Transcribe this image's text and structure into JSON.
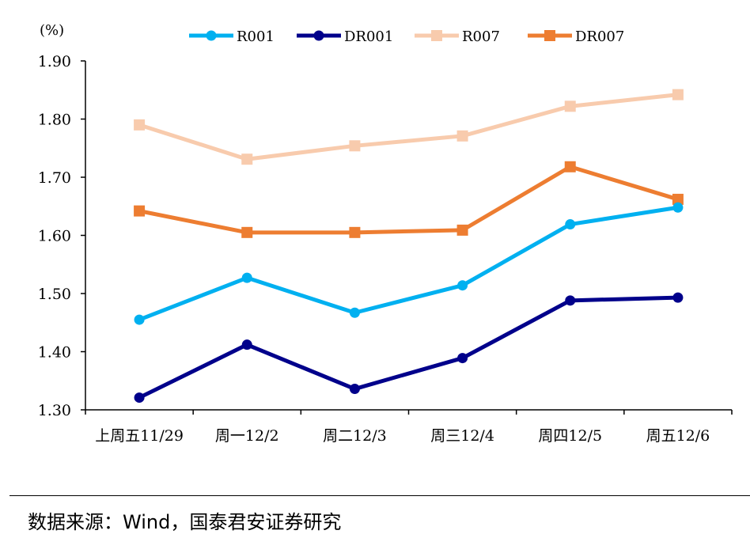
{
  "unit_label": "(%)",
  "source": "数据来源：Wind，国泰君安证券研究",
  "chart_data": {
    "type": "line",
    "categories": [
      "上周五11/29",
      "周一12/2",
      "周二12/3",
      "周三12/4",
      "周四12/5",
      "周五12/6"
    ],
    "ylim": [
      1.3,
      1.9
    ],
    "yticks": [
      "1.30",
      "1.40",
      "1.50",
      "1.60",
      "1.70",
      "1.80",
      "1.90"
    ],
    "ytick_values": [
      1.3,
      1.4,
      1.5,
      1.6,
      1.7,
      1.8,
      1.9
    ],
    "grid": false,
    "legend": "top",
    "series": [
      {
        "name": "R001",
        "color": "#00B0F0",
        "marker": "circle",
        "values": [
          1.455,
          1.527,
          1.467,
          1.514,
          1.619,
          1.648
        ]
      },
      {
        "name": "DR001",
        "color": "#00008B",
        "marker": "circle",
        "values": [
          1.321,
          1.412,
          1.336,
          1.389,
          1.488,
          1.493
        ]
      },
      {
        "name": "R007",
        "color": "#F8CBAD",
        "marker": "square",
        "values": [
          1.79,
          1.731,
          1.754,
          1.771,
          1.822,
          1.842
        ]
      },
      {
        "name": "DR007",
        "color": "#ED7D31",
        "marker": "square",
        "values": [
          1.642,
          1.605,
          1.605,
          1.609,
          1.718,
          1.662
        ]
      }
    ]
  }
}
